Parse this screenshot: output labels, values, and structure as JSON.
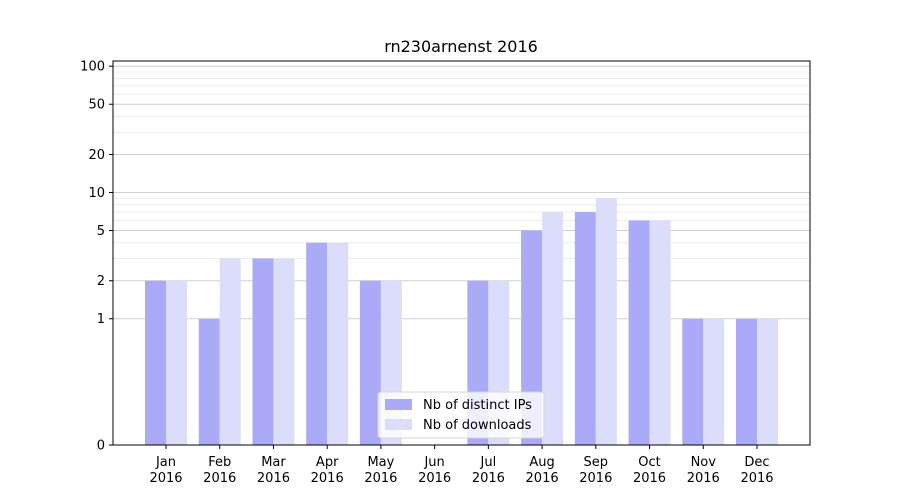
{
  "chart_data": {
    "type": "bar",
    "title": "rn230arnenst 2016",
    "xlabel": "",
    "ylabel": "",
    "y_scale": "symlog",
    "ylim": [
      0,
      110
    ],
    "y_ticks": [
      0,
      1,
      2,
      5,
      10,
      20,
      50,
      100
    ],
    "categories": [
      {
        "month": "Jan",
        "year": "2016"
      },
      {
        "month": "Feb",
        "year": "2016"
      },
      {
        "month": "Mar",
        "year": "2016"
      },
      {
        "month": "Apr",
        "year": "2016"
      },
      {
        "month": "May",
        "year": "2016"
      },
      {
        "month": "Jun",
        "year": "2016"
      },
      {
        "month": "Jul",
        "year": "2016"
      },
      {
        "month": "Aug",
        "year": "2016"
      },
      {
        "month": "Sep",
        "year": "2016"
      },
      {
        "month": "Oct",
        "year": "2016"
      },
      {
        "month": "Nov",
        "year": "2016"
      },
      {
        "month": "Dec",
        "year": "2016"
      }
    ],
    "series": [
      {
        "name": "Nb of distinct IPs",
        "color": "#aaaaf7",
        "values": [
          2,
          1,
          3,
          4,
          2,
          0,
          2,
          5,
          7,
          6,
          1,
          1
        ]
      },
      {
        "name": "Nb of downloads",
        "color": "#dcdcfb",
        "values": [
          2,
          3,
          3,
          4,
          2,
          0,
          2,
          7,
          9,
          6,
          1,
          1
        ]
      }
    ],
    "grid": true,
    "legend_position": "bottom-center"
  }
}
